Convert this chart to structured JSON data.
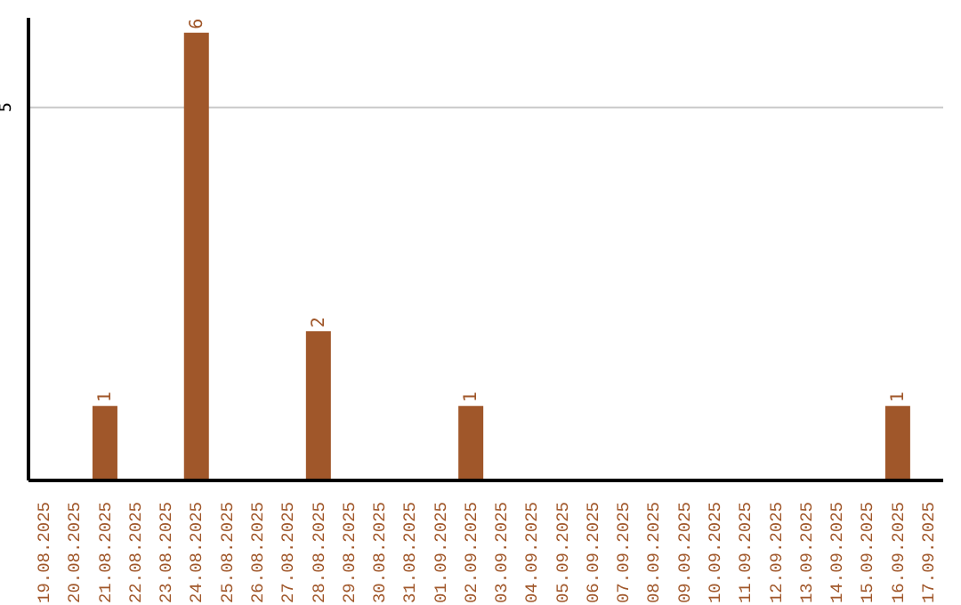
{
  "chart_data": {
    "type": "bar",
    "categories": [
      "19.08.2025",
      "20.08.2025",
      "21.08.2025",
      "22.08.2025",
      "23.08.2025",
      "24.08.2025",
      "25.08.2025",
      "26.08.2025",
      "27.08.2025",
      "28.08.2025",
      "29.08.2025",
      "30.08.2025",
      "31.08.2025",
      "01.09.2025",
      "02.09.2025",
      "03.09.2025",
      "04.09.2025",
      "05.09.2025",
      "06.09.2025",
      "07.09.2025",
      "08.09.2025",
      "09.09.2025",
      "10.09.2025",
      "11.09.2025",
      "12.09.2025",
      "13.09.2025",
      "14.09.2025",
      "15.09.2025",
      "16.09.2025",
      "17.09.2025"
    ],
    "values": [
      0,
      0,
      1,
      0,
      0,
      6,
      0,
      0,
      0,
      2,
      0,
      0,
      0,
      0,
      1,
      0,
      0,
      0,
      0,
      0,
      0,
      0,
      0,
      0,
      0,
      0,
      0,
      0,
      1,
      0
    ],
    "color": "#a0572a",
    "ylim": [
      0,
      6.2
    ],
    "yticks": [
      5
    ],
    "grid": "y",
    "value_labels": [
      null,
      null,
      "1",
      null,
      null,
      "6",
      null,
      null,
      null,
      "2",
      null,
      null,
      null,
      null,
      "1",
      null,
      null,
      null,
      null,
      null,
      null,
      null,
      null,
      null,
      null,
      null,
      null,
      null,
      "1",
      null
    ]
  }
}
